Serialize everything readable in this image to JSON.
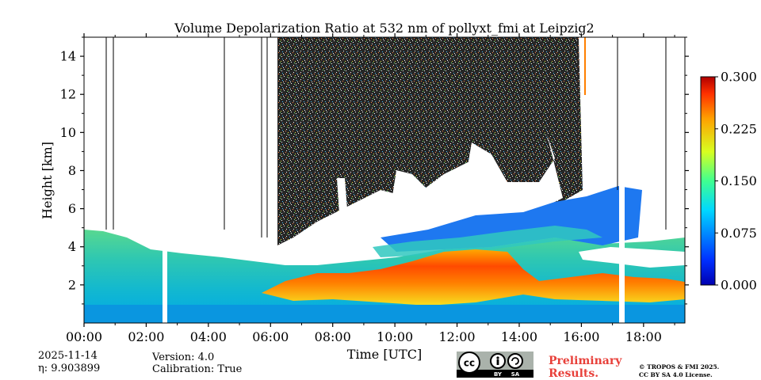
{
  "chart_data": {
    "type": "heatmap",
    "title": "Volume Depolarization Ratio at 532 nm of pollyxt_fmi at Leipzig2",
    "xlabel": "Time [UTC]",
    "ylabel": "Height [km]",
    "x_range_hours": [
      0,
      19.33
    ],
    "xlim_hours": [
      0,
      19.33
    ],
    "ylim_km": [
      0,
      15
    ],
    "x_ticks": [
      {
        "value": 0,
        "label": "00:00"
      },
      {
        "value": 2,
        "label": "02:00"
      },
      {
        "value": 4,
        "label": "04:00"
      },
      {
        "value": 6,
        "label": "06:00"
      },
      {
        "value": 8,
        "label": "08:00"
      },
      {
        "value": 10,
        "label": "10:00"
      },
      {
        "value": 12,
        "label": "12:00"
      },
      {
        "value": 14,
        "label": "14:00"
      },
      {
        "value": 16,
        "label": "16:00"
      },
      {
        "value": 18,
        "label": "18:00"
      }
    ],
    "y_ticks": [
      {
        "value": 2,
        "label": "2"
      },
      {
        "value": 4,
        "label": "4"
      },
      {
        "value": 6,
        "label": "6"
      },
      {
        "value": 8,
        "label": "8"
      },
      {
        "value": 10,
        "label": "10"
      },
      {
        "value": 12,
        "label": "12"
      },
      {
        "value": 14,
        "label": "14"
      }
    ],
    "colorbar": {
      "min": 0.0,
      "max": 0.3,
      "colormap": "jet",
      "ticks": [
        {
          "value": 0.0,
          "label": "0.000"
        },
        {
          "value": 0.075,
          "label": "0.075"
        },
        {
          "value": 0.15,
          "label": "0.150"
        },
        {
          "value": 0.225,
          "label": "0.225"
        },
        {
          "value": 0.3,
          "label": "0.300"
        }
      ]
    },
    "features": [
      {
        "name": "boundary-layer-aerosol",
        "t_start": 0.0,
        "t_end": 19.33,
        "h_bottom": 0.0,
        "h_top": 4.5,
        "value": 0.06
      },
      {
        "name": "elevated-dust-layer",
        "t_start": 6.0,
        "t_end": 19.0,
        "h_bottom": 0.8,
        "h_top": 3.8,
        "value": 0.22
      },
      {
        "name": "upper-aerosol-layer",
        "t_start": 10.0,
        "t_end": 17.5,
        "h_bottom": 3.6,
        "h_top": 7.0,
        "value": 0.05
      },
      {
        "name": "cirrus-clouds",
        "t_start": 8.0,
        "t_end": 17.5,
        "h_bottom": 4.5,
        "h_top": 9.5,
        "value": null
      },
      {
        "name": "noise-region",
        "t_start": 6.2,
        "t_end": 15.8,
        "h_bottom": 6.0,
        "h_top": 15.0,
        "value": "noise"
      }
    ],
    "gaps_hours": [
      2.6,
      17.25
    ]
  },
  "info": {
    "date": "2025-11-14",
    "eta_label": "η: 9.903899",
    "version": "Version: 4.0",
    "calibration": "Calibration: True",
    "preliminary_line1": "Preliminary",
    "preliminary_line2": "Results.",
    "copyright_line1": "© TROPOS & FMI 2025.",
    "copyright_line2": "CC BY SA 4.0 License.",
    "license_badge": "cc-by-sa-icon"
  }
}
